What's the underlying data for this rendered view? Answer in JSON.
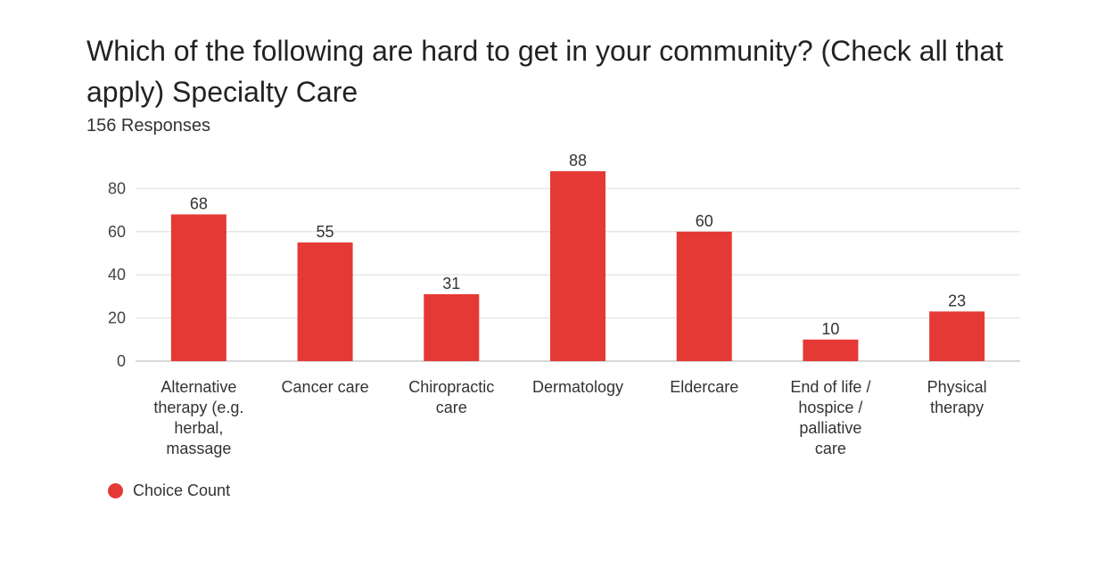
{
  "title": "Which of the following are hard to get in your community? (Check all that apply) Specialty Care",
  "subtitle": "156 Responses",
  "legend": {
    "label": "Choice Count",
    "color": "#e53935"
  },
  "chart_data": {
    "type": "bar",
    "title": "Which of the following are hard to get in your community? (Check all that apply) Specialty Care",
    "subtitle": "156 Responses",
    "xlabel": "",
    "ylabel": "",
    "ylim": [
      0,
      90
    ],
    "yticks": [
      0,
      20,
      40,
      60,
      80
    ],
    "grid": true,
    "legend_position": "bottom-left",
    "bar_color": "#e53935",
    "categories": [
      [
        "Alternative",
        "therapy (e.g.",
        "herbal,",
        "massage"
      ],
      [
        "Cancer care"
      ],
      [
        "Chiropractic",
        "care"
      ],
      [
        "Dermatology"
      ],
      [
        "Eldercare"
      ],
      [
        "End of life /",
        "hospice /",
        "palliative",
        "care"
      ],
      [
        "Physical",
        "therapy"
      ]
    ],
    "series": [
      {
        "name": "Choice Count",
        "values": [
          68,
          55,
          31,
          88,
          60,
          10,
          23
        ]
      }
    ]
  }
}
